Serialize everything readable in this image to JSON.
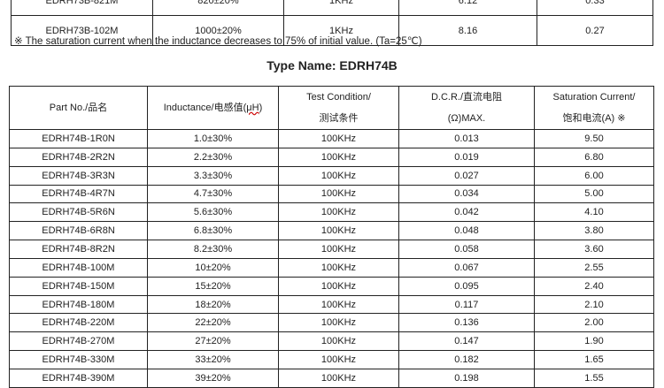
{
  "top_table": {
    "rows": [
      [
        "EDRH73B-821M",
        "820±20%",
        "1KHz",
        "6.12",
        "0.33"
      ],
      [
        "EDRH73B-102M",
        "1000±20%",
        "1KHz",
        "8.16",
        "0.27"
      ]
    ]
  },
  "note": "※  The saturation current when the inductance decreases to 75% of initial value. (Ta=25℃)",
  "title": "Type Name: EDRH74B",
  "main_table": {
    "headers": {
      "part": "Part No./品名",
      "ind_a": "Inductance/电感值(",
      "ind_unit": "μH",
      "ind_b": ")",
      "test_1": "Test Condition/",
      "test_2": "测试条件",
      "dcr_1": "D.C.R./直流电阻",
      "dcr_2": "(Ω)MAX.",
      "sat_1": "Saturation Current/",
      "sat_2": "饱和电流(A)  ※"
    },
    "rows": [
      [
        "EDRH74B-1R0N",
        "1.0±30%",
        "100KHz",
        "0.013",
        "9.50"
      ],
      [
        "EDRH74B-2R2N",
        "2.2±30%",
        "100KHz",
        "0.019",
        "6.80"
      ],
      [
        "EDRH74B-3R3N",
        "3.3±30%",
        "100KHz",
        "0.027",
        "6.00"
      ],
      [
        "EDRH74B-4R7N",
        "4.7±30%",
        "100KHz",
        "0.034",
        "5.00"
      ],
      [
        "EDRH74B-5R6N",
        "5.6±30%",
        "100KHz",
        "0.042",
        "4.10"
      ],
      [
        "EDRH74B-6R8N",
        "6.8±30%",
        "100KHz",
        "0.048",
        "3.80"
      ],
      [
        "EDRH74B-8R2N",
        "8.2±30%",
        "100KHz",
        "0.058",
        "3.60"
      ],
      [
        "EDRH74B-100M",
        "10±20%",
        "100KHz",
        "0.067",
        "2.55"
      ],
      [
        "EDRH74B-150M",
        "15±20%",
        "100KHz",
        "0.095",
        "2.40"
      ],
      [
        "EDRH74B-180M",
        "18±20%",
        "100KHz",
        "0.117",
        "2.10"
      ],
      [
        "EDRH74B-220M",
        "22±20%",
        "100KHz",
        "0.136",
        "2.00"
      ],
      [
        "EDRH74B-270M",
        "27±20%",
        "100KHz",
        "0.147",
        "1.90"
      ],
      [
        "EDRH74B-330M",
        "33±20%",
        "100KHz",
        "0.182",
        "1.65"
      ],
      [
        "EDRH74B-390M",
        "39±20%",
        "100KHz",
        "0.198",
        "1.55"
      ]
    ]
  }
}
